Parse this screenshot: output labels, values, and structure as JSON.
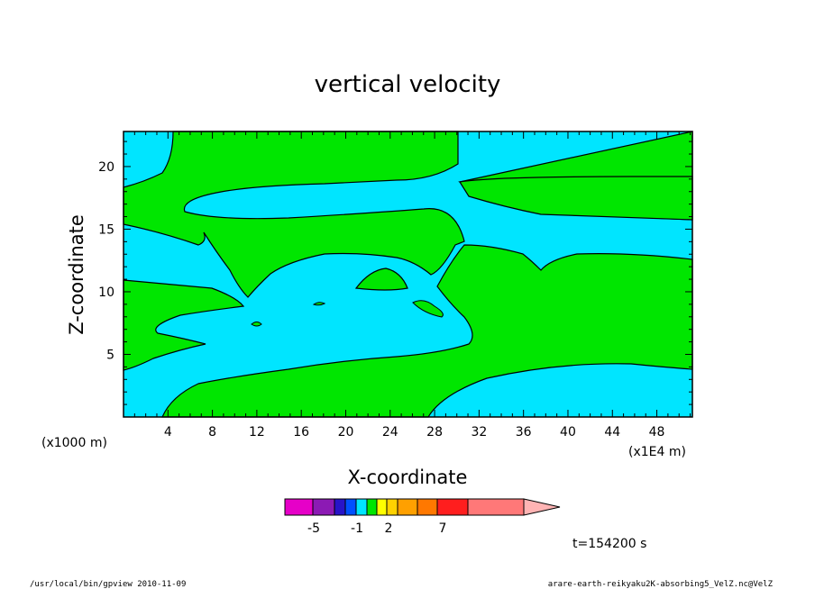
{
  "chart_data": {
    "type": "contour",
    "title": "vertical velocity",
    "xlabel": "X-coordinate",
    "ylabel": "Z-coordinate",
    "x_scale_note": "(x1E4 m)",
    "y_scale_note": "(x1000 m)",
    "xlim": [
      0,
      51.2
    ],
    "ylim": [
      0,
      22.8
    ],
    "x_ticks": [
      "4",
      "8",
      "12",
      "16",
      "20",
      "24",
      "28",
      "32",
      "36",
      "40",
      "44",
      "48"
    ],
    "y_ticks": [
      "5",
      "10",
      "15",
      "20"
    ],
    "colorbar": {
      "tick_labels": [
        "-5",
        "-1",
        "2",
        "7"
      ],
      "colors": [
        "#e600c8",
        "#8c1ab4",
        "#2814c8",
        "#0050ff",
        "#00e5ff",
        "#00e600",
        "#ffff00",
        "#ffd200",
        "#ffa000",
        "#ff7800",
        "#ff1e1e",
        "#ff7878",
        "#ffb4b4"
      ]
    },
    "fill_colors": {
      "negative": "#00e5ff",
      "positive": "#00e600"
    },
    "time_label": "t=154200 s",
    "footer_left": "/usr/local/bin/gpview   2010-11-09",
    "footer_right": "arare-earth-reikyaku2K-absorbing5_VelZ.nc@VelZ"
  }
}
